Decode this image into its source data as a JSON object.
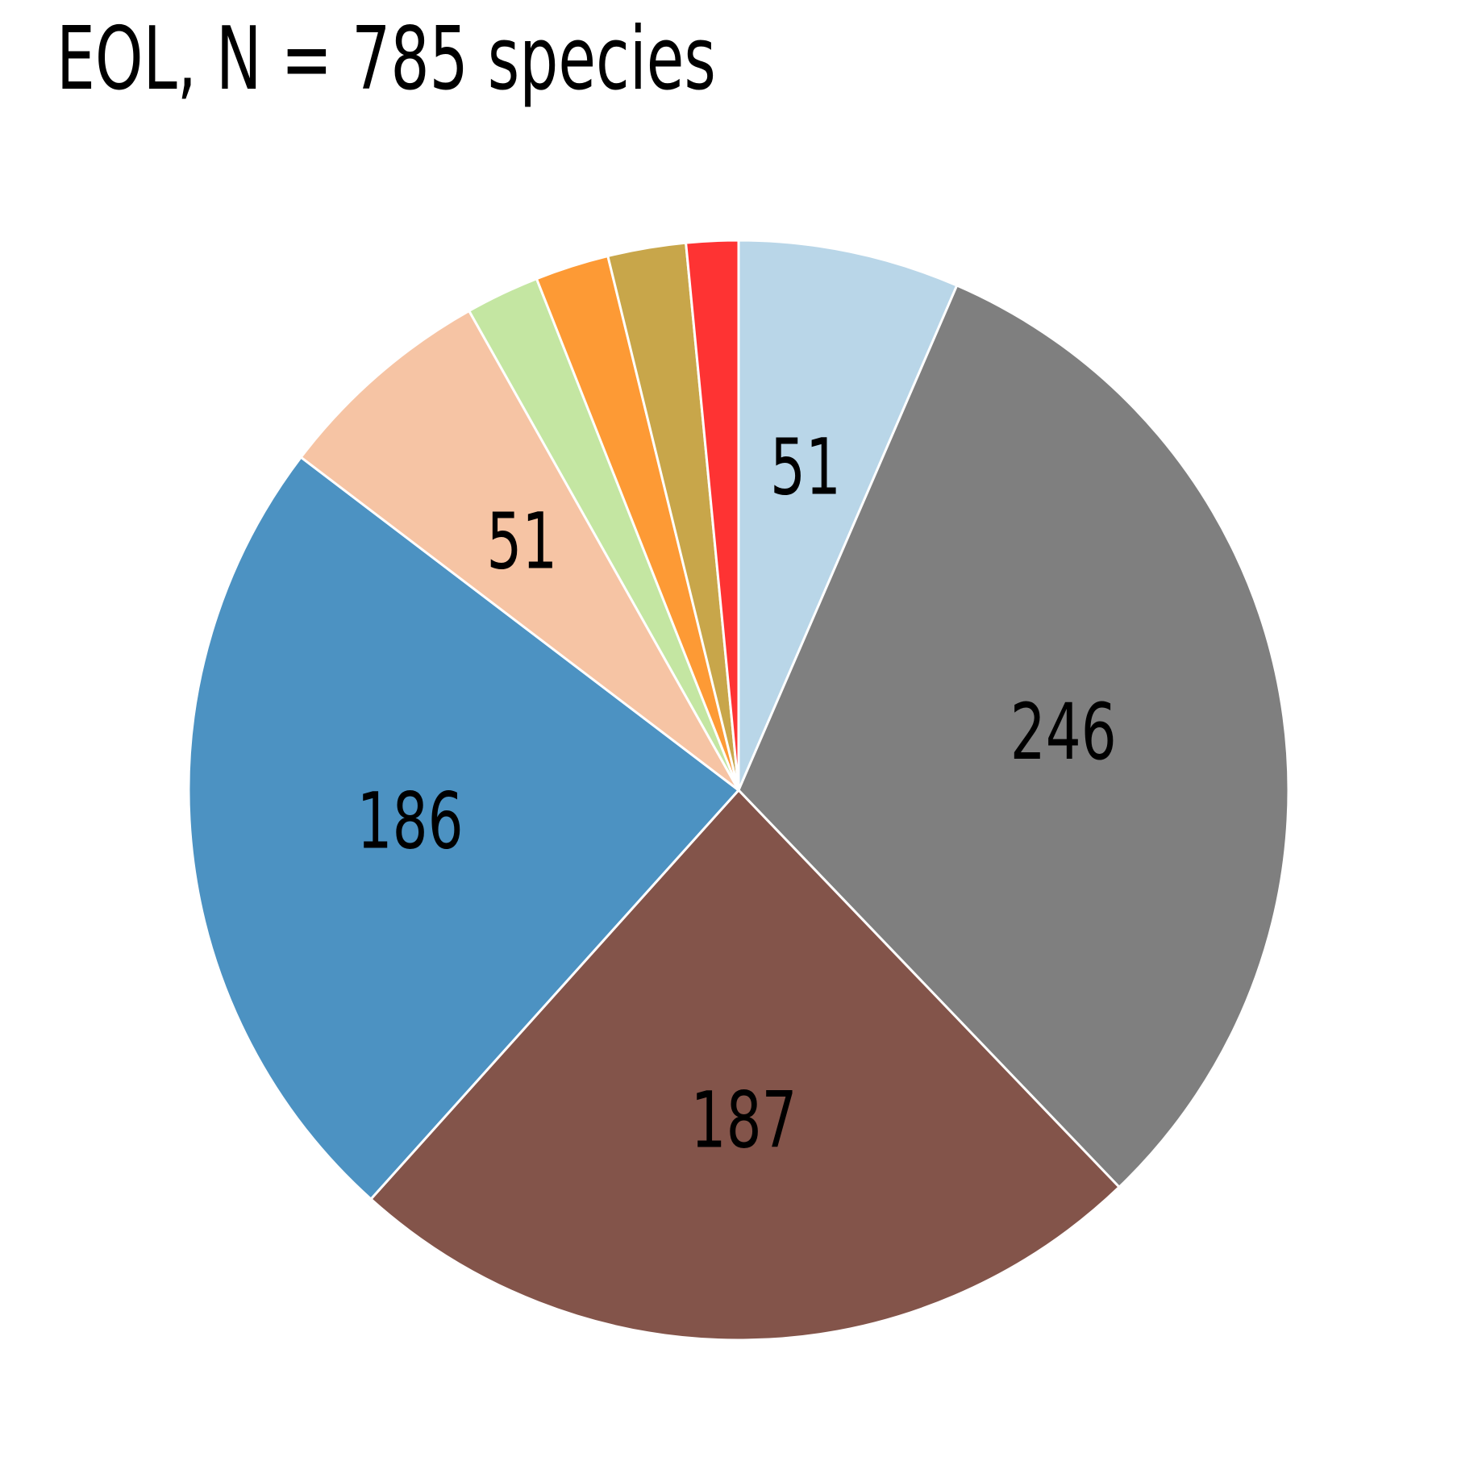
{
  "chart_data": {
    "type": "pie",
    "title": "EOL, N = 785 species",
    "slices": [
      {
        "value": 51,
        "label": "51",
        "color": "#b9d6e8"
      },
      {
        "value": 246,
        "label": "246",
        "color": "#7f7f7f"
      },
      {
        "value": 187,
        "label": "187",
        "color": "#83544a"
      },
      {
        "value": 186,
        "label": "186",
        "color": "#4c92c2"
      },
      {
        "value": 51,
        "label": "51",
        "color": "#f6c4a4"
      },
      {
        "value": 17,
        "label": "",
        "color": "#c4e6a2"
      },
      {
        "value": 17,
        "label": "",
        "color": "#fd9a35"
      },
      {
        "value": 18,
        "label": "",
        "color": "#c8a64a"
      },
      {
        "value": 12,
        "label": "",
        "color": "#fe3333"
      }
    ],
    "start_angle": "12 o'clock",
    "direction": "clockwise",
    "legend": "none"
  }
}
